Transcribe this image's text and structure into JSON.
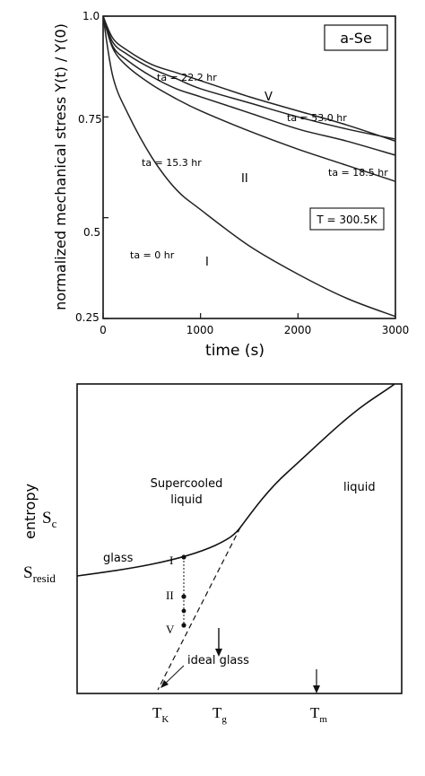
{
  "chart_data": [
    {
      "type": "line",
      "xlabel": "time (s)",
      "ylabel": "normalized mechanical stress Y(t) / Y(0)",
      "xlim": [
        0,
        3000
      ],
      "ylim": [
        0.25,
        1.0
      ],
      "xticks": [
        "0",
        "1000",
        "2000",
        "3000"
      ],
      "yticks": [
        "0.25",
        "0.5",
        "0.75",
        "1.0"
      ],
      "box_label": "a-Se",
      "temperature_label": "T = 300.5K",
      "series": [
        {
          "name": "I",
          "annotation": "ta = 0 hr",
          "x": [
            0,
            100,
            250,
            500,
            750,
            1000,
            1500,
            2000,
            2500,
            3000
          ],
          "y": [
            1.0,
            0.85,
            0.76,
            0.65,
            0.57,
            0.52,
            0.43,
            0.36,
            0.3,
            0.255
          ]
        },
        {
          "name": "II",
          "annotation": "ta = 15.3 hr",
          "x": [
            0,
            100,
            250,
            500,
            750,
            1000,
            1500,
            2000,
            2500,
            3000
          ],
          "y": [
            1.0,
            0.925,
            0.89,
            0.85,
            0.82,
            0.8,
            0.76,
            0.72,
            0.69,
            0.655
          ]
        },
        {
          "name": "",
          "annotation": "ta = 18.5 hr",
          "x": [
            0,
            100,
            250,
            500,
            750,
            1000,
            1500,
            2000,
            2500,
            3000
          ],
          "y": [
            1.0,
            0.92,
            0.875,
            0.83,
            0.795,
            0.765,
            0.715,
            0.67,
            0.63,
            0.59
          ]
        },
        {
          "name": "",
          "annotation": "ta = 53.0 hr",
          "x": [
            0,
            100,
            250,
            500,
            750,
            1000,
            1500,
            2000,
            2500,
            3000
          ],
          "y": [
            1.0,
            0.935,
            0.905,
            0.87,
            0.845,
            0.82,
            0.785,
            0.75,
            0.72,
            0.695
          ]
        },
        {
          "name": "V",
          "annotation": "ta = 22.2 hr",
          "x": [
            0,
            100,
            250,
            500,
            750,
            1000,
            1500,
            2000,
            2500,
            3000
          ],
          "y": [
            1.0,
            0.945,
            0.915,
            0.88,
            0.86,
            0.84,
            0.8,
            0.765,
            0.73,
            0.69
          ]
        }
      ]
    },
    {
      "type": "diagram",
      "ylabel": "entropy",
      "ytick_labels": {
        "sc": "S",
        "sc_sub": "c",
        "sresid": "S",
        "sresid_sub": "resid"
      },
      "xtick_labels": {
        "tk": "T",
        "tk_sub": "K",
        "tg": "T",
        "tg_sub": "g",
        "tm": "T",
        "tm_sub": "m"
      },
      "region_labels": {
        "liquid": "liquid",
        "supercooled_1": "Supercooled",
        "supercooled_2": "liquid",
        "glass": "glass",
        "ideal_glass": "ideal glass"
      },
      "points": [
        "I",
        "II",
        "V"
      ]
    }
  ]
}
